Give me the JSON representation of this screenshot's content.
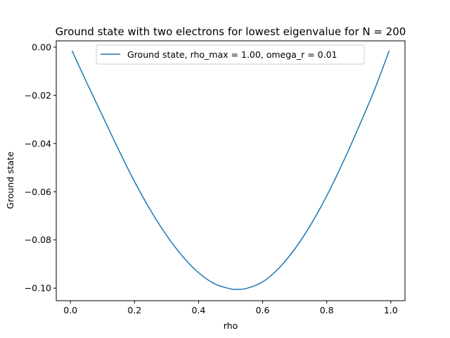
{
  "chart_data": {
    "type": "line",
    "title": "Ground state with two electrons for lowest eigenvalue for N = 200",
    "xlabel": "rho",
    "ylabel": "Ground state",
    "xlim": [
      -0.0443,
      1.0443
    ],
    "ylim": [
      -0.1052,
      0.0026
    ],
    "xticks": [
      0.0,
      0.2,
      0.4,
      0.6,
      0.8,
      1.0
    ],
    "xtick_labels": [
      "0.0",
      "0.2",
      "0.4",
      "0.6",
      "0.8",
      "1.0"
    ],
    "yticks": [
      0.0,
      -0.02,
      -0.04,
      -0.06,
      -0.08,
      -0.1
    ],
    "ytick_labels": [
      "0.00",
      "−0.02",
      "−0.04",
      "−0.06",
      "−0.08",
      "−0.10"
    ],
    "grid": false,
    "legend_position": "upper center",
    "series": [
      {
        "name": "Ground state, rho_max = 1.00, omega_r = 0.01",
        "color": "#1f77b4",
        "x": [
          0.005,
          0.05,
          0.1,
          0.15,
          0.2,
          0.25,
          0.3,
          0.35,
          0.4,
          0.45,
          0.5,
          0.52,
          0.55,
          0.6,
          0.65,
          0.7,
          0.75,
          0.8,
          0.85,
          0.9,
          0.95,
          0.995
        ],
        "y": [
          -0.0015,
          -0.0145,
          -0.0285,
          -0.0425,
          -0.0558,
          -0.0677,
          -0.0781,
          -0.0868,
          -0.0936,
          -0.0982,
          -0.1003,
          -0.1005,
          -0.1001,
          -0.0974,
          -0.0918,
          -0.0838,
          -0.0737,
          -0.0617,
          -0.048,
          -0.0331,
          -0.0174,
          -0.0015
        ]
      }
    ]
  }
}
